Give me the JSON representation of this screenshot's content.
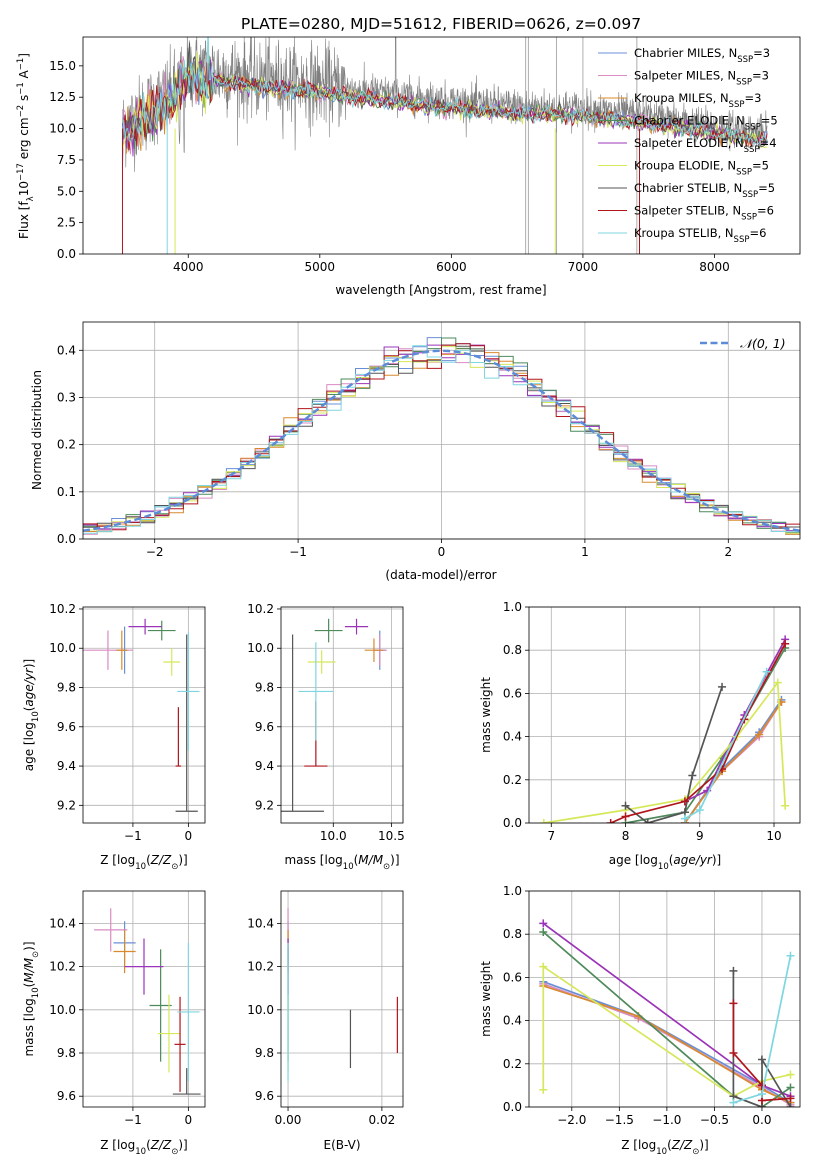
{
  "figure": {
    "title": "PLATE=0280, MJD=51612, FIBERID=0626, z=0.097"
  },
  "colors": {
    "chabrier_miles": "#6b8fd6",
    "salpeter_miles": "#d98bc2",
    "kroupa_miles": "#d98a2e",
    "chabrier_elodie": "#4e8a5a",
    "salpeter_elodie": "#9b34b8",
    "kroupa_elodie": "#d6e85a",
    "chabrier_stelib": "#555555",
    "salpeter_stelib": "#b0151c",
    "kroupa_stelib": "#7fd6e0",
    "gaussian": "#5b8bd9"
  },
  "chart_data": [
    {
      "type": "line",
      "title": "PLATE=0280, MJD=51612, FIBERID=0626, z=0.097",
      "xlabel": "wavelength [Angstrom, rest frame]",
      "ylabel_parts": [
        "Flux [f",
        "λ",
        "10",
        "−17",
        " erg cm",
        "−2",
        " s",
        "−1",
        " A",
        "−1",
        "]"
      ],
      "xlim": [
        3200,
        8650
      ],
      "ylim": [
        0,
        17.3
      ],
      "xticks": [
        4000,
        5000,
        6000,
        7000,
        8000
      ],
      "yticks": [
        0.0,
        2.5,
        5.0,
        7.5,
        10.0,
        12.5,
        15.0
      ],
      "grid": false,
      "legend_position": "top-right",
      "series": [
        {
          "key": "chabrier_miles",
          "label": "Chabrier MILES, N",
          "sub": "SSP",
          "val": "=3"
        },
        {
          "key": "salpeter_miles",
          "label": "Salpeter MILES, N",
          "sub": "SSP",
          "val": "=3"
        },
        {
          "key": "kroupa_miles",
          "label": "Kroupa MILES, N",
          "sub": "SSP",
          "val": "=3"
        },
        {
          "key": "chabrier_elodie",
          "label": "Chabrier ELODIE, N",
          "sub": "SSP",
          "val": "=5"
        },
        {
          "key": "salpeter_elodie",
          "label": "Salpeter ELODIE, N",
          "sub": "SSP",
          "val": "=4"
        },
        {
          "key": "kroupa_elodie",
          "label": "Kroupa ELODIE, N",
          "sub": "SSP",
          "val": "=5"
        },
        {
          "key": "chabrier_stelib",
          "label": "Chabrier STELIB, N",
          "sub": "SSP",
          "val": "=5"
        },
        {
          "key": "salpeter_stelib",
          "label": "Salpeter STELIB, N",
          "sub": "SSP",
          "val": "=6"
        },
        {
          "key": "kroupa_stelib",
          "label": "Kroupa STELIB, N",
          "sub": "SSP",
          "val": "=6"
        }
      ],
      "continuum": [
        [
          3500,
          10.0
        ],
        [
          3700,
          11.6
        ],
        [
          3900,
          13.0
        ],
        [
          4000,
          14.8
        ],
        [
          4200,
          14.5
        ],
        [
          4500,
          14.0
        ],
        [
          5000,
          13.5
        ],
        [
          5500,
          12.8
        ],
        [
          6000,
          12.2
        ],
        [
          6500,
          11.8
        ],
        [
          7000,
          11.6
        ],
        [
          7500,
          11.0
        ],
        [
          8000,
          10.2
        ],
        [
          8400,
          9.6
        ]
      ]
    },
    {
      "type": "histogram",
      "xlabel": "(data-model)/error",
      "ylabel": "Normed distribution",
      "xlim": [
        -2.5,
        2.5
      ],
      "ylim": [
        0,
        0.46
      ],
      "xticks": [
        -2,
        -1,
        0,
        1,
        2
      ],
      "yticks": [
        0.0,
        0.1,
        0.2,
        0.3,
        0.4
      ],
      "grid": true,
      "legend_position": "top-right",
      "gaussian_label": "𝒩(0, 1)",
      "bin_width": 0.1
    },
    {
      "type": "scatter",
      "xlabel": "Z [log",
      "xlabel_sub": "10",
      "xlabel_end": "(Z/Z",
      "xlabel_sun": "⊙",
      "xlabel_close": ")]",
      "ylabel": "age  [log",
      "ylabel_sub": "10",
      "ylabel_end": "(age/yr)]",
      "xlim": [
        -1.9,
        0.3
      ],
      "ylim": [
        9.11,
        10.21
      ],
      "xticks": [
        -1,
        0
      ],
      "yticks": [
        9.2,
        9.4,
        9.6,
        9.8,
        10.0,
        10.2
      ],
      "grid": true,
      "points": [
        {
          "key": "chabrier_miles",
          "x": -1.15,
          "xerr": 0.05,
          "y": 9.99,
          "yerr": 0.12
        },
        {
          "key": "salpeter_miles",
          "x": -1.45,
          "xerr": 0.45,
          "y": 9.99,
          "yerr": 0.1
        },
        {
          "key": "kroupa_miles",
          "x": -1.2,
          "xerr": 0.1,
          "y": 9.99,
          "yerr": 0.1
        },
        {
          "key": "chabrier_elodie",
          "x": -0.48,
          "xerr": 0.25,
          "y": 10.09,
          "yerr": 0.05
        },
        {
          "key": "salpeter_elodie",
          "x": -0.78,
          "xerr": 0.3,
          "y": 10.11,
          "yerr": 0.04
        },
        {
          "key": "kroupa_elodie",
          "x": -0.3,
          "xerr": 0.15,
          "y": 9.93,
          "yerr": 0.07
        },
        {
          "key": "chabrier_stelib",
          "x": -0.03,
          "xerr": 0.2,
          "y": 9.17,
          "yerr": 0.9
        },
        {
          "key": "salpeter_stelib",
          "x": -0.18,
          "xerr": 0.05,
          "y": 9.4,
          "yerr": 0.3
        },
        {
          "key": "kroupa_stelib",
          "x": 0.0,
          "xerr": 0.2,
          "y": 9.78,
          "yerr": 0.3
        }
      ]
    },
    {
      "type": "scatter",
      "xlabel": "mass [log",
      "xlabel_sub": "10",
      "xlabel_end": "(M/M",
      "xlabel_sun": "⊙",
      "xlabel_close": ")]",
      "xlim": [
        9.55,
        10.6
      ],
      "ylim": [
        9.11,
        10.21
      ],
      "xticks": [
        10.0,
        10.5
      ],
      "yticks": [
        9.2,
        9.4,
        9.6,
        9.8,
        10.0,
        10.2
      ],
      "grid": true,
      "points": [
        {
          "key": "chabrier_miles",
          "x": 10.4,
          "xerr": 0.05,
          "y": 9.99,
          "yerr": 0.1
        },
        {
          "key": "salpeter_miles",
          "x": 10.4,
          "xerr": 0.06,
          "y": 9.99,
          "yerr": 0.08
        },
        {
          "key": "kroupa_miles",
          "x": 10.35,
          "xerr": 0.08,
          "y": 9.99,
          "yerr": 0.06
        },
        {
          "key": "chabrier_elodie",
          "x": 9.96,
          "xerr": 0.12,
          "y": 10.09,
          "yerr": 0.06
        },
        {
          "key": "salpeter_elodie",
          "x": 10.2,
          "xerr": 0.1,
          "y": 10.11,
          "yerr": 0.04
        },
        {
          "key": "kroupa_elodie",
          "x": 9.9,
          "xerr": 0.12,
          "y": 9.93,
          "yerr": 0.06
        },
        {
          "key": "chabrier_stelib",
          "x": 9.65,
          "xerr": 0.27,
          "y": 9.17,
          "yerr": 0.9
        },
        {
          "key": "salpeter_stelib",
          "x": 9.85,
          "xerr": 0.1,
          "y": 9.4,
          "yerr": 0.33
        },
        {
          "key": "kroupa_stelib",
          "x": 9.85,
          "xerr": 0.15,
          "y": 9.78,
          "yerr": 0.25
        }
      ]
    },
    {
      "type": "line",
      "xlabel": "age  [log",
      "xlabel_sub": "10",
      "xlabel_end": "(age/yr)]",
      "ylabel": "mass weight",
      "xlim": [
        6.7,
        10.35
      ],
      "ylim": [
        0,
        1.0
      ],
      "xticks": [
        7,
        8,
        9,
        10
      ],
      "yticks": [
        0.0,
        0.2,
        0.4,
        0.6,
        0.8,
        1.0
      ],
      "grid": true,
      "series": [
        {
          "key": "chabrier_miles",
          "x": [
            8.8,
            9.3,
            9.8,
            10.1
          ],
          "y": [
            0.0,
            0.25,
            0.42,
            0.57
          ]
        },
        {
          "key": "salpeter_miles",
          "x": [
            8.8,
            9.3,
            9.8,
            10.1
          ],
          "y": [
            0.0,
            0.24,
            0.4,
            0.56
          ]
        },
        {
          "key": "kroupa_miles",
          "x": [
            8.8,
            9.3,
            9.8,
            10.1
          ],
          "y": [
            0.0,
            0.24,
            0.41,
            0.56
          ]
        },
        {
          "key": "chabrier_elodie",
          "x": [
            8.0,
            8.8,
            9.3,
            9.6,
            10.15
          ],
          "y": [
            0.0,
            0.05,
            0.3,
            0.48,
            0.81
          ]
        },
        {
          "key": "salpeter_elodie",
          "x": [
            8.8,
            9.1,
            9.6,
            10.15
          ],
          "y": [
            0.1,
            0.15,
            0.5,
            0.85
          ]
        },
        {
          "key": "kroupa_elodie",
          "x": [
            6.9,
            8.0,
            8.8,
            9.5,
            10.05,
            10.15
          ],
          "y": [
            0.0,
            0.06,
            0.11,
            0.4,
            0.65,
            0.08
          ]
        },
        {
          "key": "chabrier_stelib",
          "x": [
            8.0,
            8.3,
            8.8,
            8.9,
            9.3
          ],
          "y": [
            0.08,
            0.0,
            0.05,
            0.22,
            0.63
          ]
        },
        {
          "key": "salpeter_stelib",
          "x": [
            7.8,
            8.0,
            8.8,
            9.3,
            9.6,
            10.15
          ],
          "y": [
            0.0,
            0.03,
            0.1,
            0.25,
            0.48,
            0.83
          ]
        },
        {
          "key": "kroupa_stelib",
          "x": [
            8.8,
            9.0,
            9.9
          ],
          "y": [
            0.02,
            0.06,
            0.7
          ]
        }
      ]
    },
    {
      "type": "scatter",
      "xlabel": "Z [log",
      "xlabel_sub": "10",
      "xlabel_end": "(Z/Z",
      "xlabel_sun": "⊙",
      "xlabel_close": ")]",
      "ylabel": "mass [log",
      "ylabel_sub": "10",
      "ylabel_end": "(M/M",
      "ylabel_sun": "⊙",
      "ylabel_close": ")]",
      "xlim": [
        -1.9,
        0.3
      ],
      "ylim": [
        9.55,
        10.55
      ],
      "xticks": [
        -1,
        0
      ],
      "yticks": [
        9.6,
        9.8,
        10.0,
        10.2,
        10.4
      ],
      "grid": true,
      "points": [
        {
          "key": "chabrier_miles",
          "x": -1.15,
          "xerr": 0.2,
          "y": 10.31,
          "yerr": 0.1
        },
        {
          "key": "salpeter_miles",
          "x": -1.4,
          "xerr": 0.3,
          "y": 10.37,
          "yerr": 0.1
        },
        {
          "key": "kroupa_miles",
          "x": -1.15,
          "xerr": 0.2,
          "y": 10.27,
          "yerr": 0.1
        },
        {
          "key": "chabrier_elodie",
          "x": -0.5,
          "xerr": 0.2,
          "y": 10.02,
          "yerr": 0.26
        },
        {
          "key": "salpeter_elodie",
          "x": -0.8,
          "xerr": 0.35,
          "y": 10.2,
          "yerr": 0.13
        },
        {
          "key": "kroupa_elodie",
          "x": -0.35,
          "xerr": 0.2,
          "y": 9.89,
          "yerr": 0.18
        },
        {
          "key": "chabrier_stelib",
          "x": -0.03,
          "xerr": 0.25,
          "y": 9.61,
          "yerr": 0.12
        },
        {
          "key": "salpeter_stelib",
          "x": -0.15,
          "xerr": 0.1,
          "y": 9.84,
          "yerr": 0.22
        },
        {
          "key": "kroupa_stelib",
          "x": 0.0,
          "xerr": 0.2,
          "y": 9.99,
          "yerr": 0.32
        }
      ]
    },
    {
      "type": "scatter",
      "xlabel": "E(B-V)",
      "xlim": [
        -0.0015,
        0.0245
      ],
      "ylim": [
        9.55,
        10.55
      ],
      "xticks": [
        0.0,
        0.02
      ],
      "yticks": [
        9.6,
        9.8,
        10.0,
        10.2,
        10.4
      ],
      "grid": true,
      "points": [
        {
          "key": "chabrier_miles",
          "x": 0.0,
          "y": 10.31,
          "yerr": 0.1
        },
        {
          "key": "salpeter_miles",
          "x": 0.0,
          "y": 10.37,
          "yerr": 0.1
        },
        {
          "key": "kroupa_miles",
          "x": 0.0,
          "y": 10.27,
          "yerr": 0.1
        },
        {
          "key": "chabrier_elodie",
          "x": 0.0,
          "y": 10.02,
          "yerr": 0.26
        },
        {
          "key": "salpeter_elodie",
          "x": 0.0,
          "y": 10.2,
          "yerr": 0.13
        },
        {
          "key": "kroupa_elodie",
          "x": 0.0,
          "y": 9.89,
          "yerr": 0.18
        },
        {
          "key": "chabrier_stelib",
          "x": 0.0133,
          "y": 9.73,
          "yerr": 0.27
        },
        {
          "key": "salpeter_stelib",
          "x": 0.0233,
          "y": 9.93,
          "yerr": 0.13
        },
        {
          "key": "kroupa_stelib",
          "x": 0.0,
          "y": 9.99,
          "yerr": 0.32
        }
      ]
    },
    {
      "type": "line",
      "xlabel": "Z [log",
      "xlabel_sub": "10",
      "xlabel_end": "(Z/Z",
      "xlabel_sun": "⊙",
      "xlabel_close": ")]",
      "ylabel": "mass weight",
      "xlim": [
        -2.45,
        0.4
      ],
      "ylim": [
        0,
        1.0
      ],
      "xticks": [
        -2.0,
        -1.5,
        -1.0,
        -0.5,
        0.0
      ],
      "yticks": [
        0.0,
        0.2,
        0.4,
        0.6,
        0.8,
        1.0
      ],
      "grid": true,
      "series": [
        {
          "key": "chabrier_miles",
          "x": [
            -2.3,
            -1.3,
            0.0,
            0.3
          ],
          "y": [
            0.58,
            0.42,
            0.1,
            0.02
          ]
        },
        {
          "key": "salpeter_miles",
          "x": [
            -2.3,
            -1.3,
            0.0,
            0.3
          ],
          "y": [
            0.57,
            0.41,
            0.09,
            0.01
          ]
        },
        {
          "key": "kroupa_miles",
          "x": [
            -2.3,
            -1.3,
            0.0,
            0.3
          ],
          "y": [
            0.56,
            0.42,
            0.08,
            0.02
          ]
        },
        {
          "key": "chabrier_elodie",
          "x": [
            -2.3,
            -0.3,
            0.0,
            0.3
          ],
          "y": [
            0.81,
            0.05,
            0.0,
            0.09
          ]
        },
        {
          "key": "salpeter_elodie",
          "x": [
            -2.3,
            0.0,
            0.3
          ],
          "y": [
            0.85,
            0.1,
            0.05
          ]
        },
        {
          "key": "kroupa_elodie",
          "x": [
            -2.3,
            -2.3,
            -0.3,
            0.0,
            0.3
          ],
          "y": [
            0.08,
            0.65,
            0.05,
            0.12,
            0.15
          ]
        },
        {
          "key": "chabrier_stelib",
          "x": [
            -0.3,
            -0.3,
            0.0,
            0.0,
            0.3
          ],
          "y": [
            0.63,
            0.05,
            0.0,
            0.22,
            0.0
          ]
        },
        {
          "key": "salpeter_stelib",
          "x": [
            -0.3,
            -0.3,
            0.0,
            0.0,
            0.3
          ],
          "y": [
            0.48,
            0.25,
            0.1,
            0.03,
            0.04
          ]
        },
        {
          "key": "kroupa_stelib",
          "x": [
            -0.3,
            0.0,
            0.3
          ],
          "y": [
            0.02,
            0.06,
            0.7
          ]
        }
      ]
    }
  ]
}
